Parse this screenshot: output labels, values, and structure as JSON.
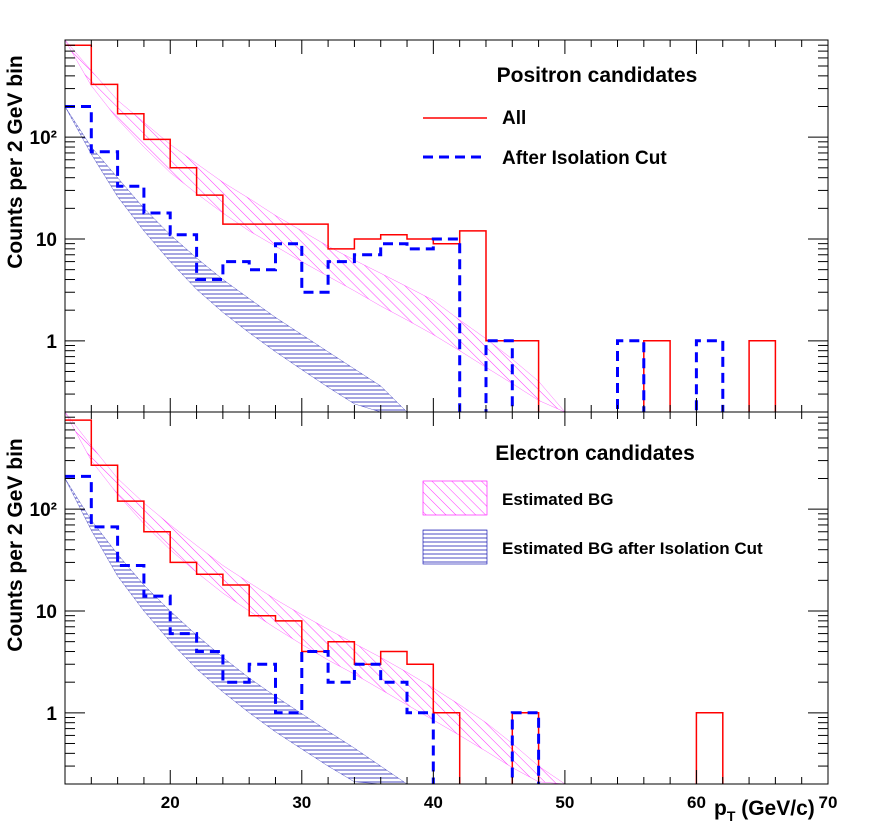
{
  "chart_data": [
    {
      "type": "step",
      "panel": "top",
      "title": "Positron candidates",
      "xlabel": "",
      "ylabel": "Counts per 2 GeV bin",
      "xlim": [
        12,
        70
      ],
      "ylim": [
        0.2,
        900
      ],
      "yscale": "log",
      "ytick_labels": [
        "1",
        "10",
        "10²"
      ],
      "yticks": [
        1,
        10,
        100
      ],
      "bin_edges": [
        12,
        14,
        16,
        18,
        20,
        22,
        24,
        26,
        28,
        30,
        32,
        34,
        36,
        38,
        40,
        42,
        44,
        46,
        48,
        50,
        52,
        54,
        56,
        58,
        60,
        62,
        64,
        66,
        68,
        70
      ],
      "series": [
        {
          "name": "All",
          "color": "#ff0000",
          "style": "solid",
          "values": [
            800,
            330,
            170,
            95,
            50,
            27,
            14,
            14,
            14,
            14,
            8,
            10,
            11,
            10,
            9,
            12,
            1,
            1,
            0,
            0,
            0,
            0,
            1,
            0,
            0,
            0,
            1,
            0,
            0
          ]
        },
        {
          "name": "After Isolation Cut",
          "color": "#0000ff",
          "style": "dashed",
          "values": [
            200,
            72,
            33,
            18,
            11,
            4,
            6,
            5,
            9,
            3,
            6,
            7,
            9,
            8,
            10,
            0,
            1,
            0,
            0,
            0,
            0,
            1,
            0,
            0,
            1,
            0,
            0,
            0,
            0
          ]
        }
      ],
      "bands": [
        {
          "name": "Estimated BG",
          "color": "#ff00ff",
          "pattern": "diagonal",
          "x": [
            12,
            14,
            16,
            18,
            20,
            22,
            24,
            26,
            28,
            30,
            32,
            34,
            36,
            38,
            40,
            42,
            44,
            46,
            48,
            50
          ],
          "lower": [
            900,
            320,
            150,
            80,
            45,
            28,
            18,
            12,
            8.5,
            6,
            4.3,
            3.1,
            2.2,
            1.6,
            1.15,
            0.8,
            0.55,
            0.38,
            0.26,
            0.2
          ],
          "upper": [
            900,
            450,
            230,
            140,
            85,
            55,
            36,
            25,
            17,
            12,
            8.5,
            6.2,
            4.6,
            3.4,
            2.5,
            1.6,
            1.05,
            0.66,
            0.4,
            0.2
          ]
        },
        {
          "name": "Estimated BG after Isolation Cut",
          "color": "#0000aa",
          "pattern": "horizontal",
          "x": [
            12,
            14,
            16,
            18,
            20,
            22,
            24,
            26,
            28,
            30,
            32,
            34,
            36,
            38
          ],
          "lower": [
            200,
            68,
            26,
            12,
            6,
            3.2,
            1.9,
            1.2,
            0.78,
            0.52,
            0.35,
            0.24,
            0.2,
            0.2
          ],
          "upper": [
            200,
            80,
            40,
            20,
            11,
            6.5,
            4,
            2.6,
            1.7,
            1.15,
            0.78,
            0.53,
            0.36,
            0.2
          ]
        }
      ]
    },
    {
      "type": "step",
      "panel": "bottom",
      "title": "Electron candidates",
      "xlabel": "p_T (GeV/c)",
      "ylabel": "Counts per 2 GeV bin",
      "xlim": [
        12,
        70
      ],
      "ylim": [
        0.2,
        900
      ],
      "yscale": "log",
      "ytick_labels": [
        "1",
        "10",
        "10²"
      ],
      "yticks": [
        1,
        10,
        100
      ],
      "xticks": [
        20,
        30,
        40,
        50,
        60,
        70
      ],
      "xtick_labels": [
        "20",
        "30",
        "40",
        "50",
        "60",
        "70"
      ],
      "bin_edges": [
        12,
        14,
        16,
        18,
        20,
        22,
        24,
        26,
        28,
        30,
        32,
        34,
        36,
        38,
        40,
        42,
        44,
        46,
        48,
        50,
        52,
        54,
        56,
        58,
        60,
        62,
        64,
        66,
        68,
        70
      ],
      "series": [
        {
          "name": "All",
          "color": "#ff0000",
          "style": "solid",
          "values": [
            750,
            270,
            120,
            60,
            30,
            23,
            18,
            9,
            8,
            4,
            5,
            3,
            4,
            3,
            1,
            0,
            0,
            1,
            0,
            0,
            0,
            0,
            0,
            0,
            1,
            0,
            0,
            0,
            0
          ]
        },
        {
          "name": "After Isolation Cut",
          "color": "#0000ff",
          "style": "dashed",
          "values": [
            210,
            67,
            28,
            14,
            6,
            4,
            2,
            3,
            1,
            4,
            2,
            3,
            2,
            1,
            0,
            0,
            0,
            1,
            0,
            0,
            0,
            0,
            0,
            0,
            0,
            0,
            0,
            0,
            0
          ]
        }
      ],
      "bands": [
        {
          "name": "Estimated BG",
          "color": "#ff00ff",
          "pattern": "diagonal",
          "x": [
            12,
            14,
            16,
            18,
            20,
            22,
            24,
            26,
            28,
            30,
            32,
            34,
            36,
            38,
            40,
            42,
            44,
            46,
            48,
            50
          ],
          "lower": [
            900,
            300,
            140,
            72,
            40,
            24,
            15,
            10,
            6.8,
            4.7,
            3.3,
            2.4,
            1.7,
            1.2,
            0.85,
            0.6,
            0.42,
            0.29,
            0.21,
            0.2
          ],
          "upper": [
            900,
            420,
            200,
            115,
            70,
            44,
            28,
            19,
            13,
            9.2,
            6.6,
            4.8,
            3.5,
            2.5,
            1.75,
            1.2,
            0.8,
            0.5,
            0.3,
            0.2
          ]
        },
        {
          "name": "Estimated BG after Isolation Cut",
          "color": "#0000aa",
          "pattern": "horizontal",
          "x": [
            12,
            14,
            16,
            18,
            20,
            22,
            24,
            26,
            28,
            30,
            32,
            34,
            36,
            38
          ],
          "lower": [
            200,
            62,
            22,
            10,
            5,
            2.7,
            1.6,
            1.0,
            0.65,
            0.44,
            0.3,
            0.21,
            0.2,
            0.2
          ],
          "upper": [
            200,
            78,
            36,
            18,
            10,
            5.8,
            3.5,
            2.2,
            1.45,
            0.98,
            0.66,
            0.45,
            0.3,
            0.2
          ]
        }
      ]
    }
  ],
  "legend_top": {
    "title": "Positron candidates",
    "entries": [
      "All",
      "After Isolation Cut"
    ]
  },
  "legend_bottom": {
    "title": "Electron candidates",
    "entries": [
      "Estimated BG",
      "Estimated BG after Isolation Cut"
    ]
  },
  "axis": {
    "ylabel_top": "Counts per 2 GeV bin",
    "ylabel_bottom": "Counts per 2 GeV bin",
    "xlabel_main": "p",
    "xlabel_sub": "T",
    "xlabel_unit": " (GeV/c)"
  }
}
